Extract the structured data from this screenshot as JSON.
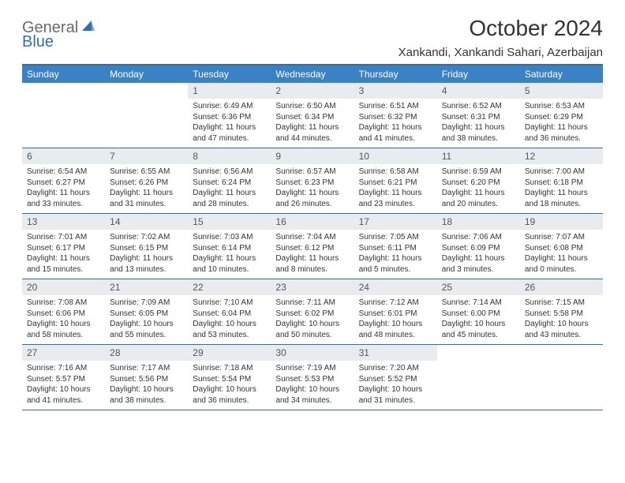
{
  "logo": {
    "word1": "General",
    "word2": "Blue"
  },
  "title": "October 2024",
  "location": "Xankandi, Xankandi Sahari, Azerbaijan",
  "colors": {
    "header_bar": "#3a82c4",
    "border": "#2d6fb6",
    "daynum_bg": "#e9ecef",
    "logo_gray": "#6a6a6a",
    "logo_blue": "#2d6fb6",
    "text": "#333333"
  },
  "daynames": [
    "Sunday",
    "Monday",
    "Tuesday",
    "Wednesday",
    "Thursday",
    "Friday",
    "Saturday"
  ],
  "weeks": [
    [
      {
        "n": "",
        "sunrise": "",
        "sunset": "",
        "daylight1": "",
        "daylight2": ""
      },
      {
        "n": "",
        "sunrise": "",
        "sunset": "",
        "daylight1": "",
        "daylight2": ""
      },
      {
        "n": "1",
        "sunrise": "Sunrise: 6:49 AM",
        "sunset": "Sunset: 6:36 PM",
        "daylight1": "Daylight: 11 hours",
        "daylight2": "and 47 minutes."
      },
      {
        "n": "2",
        "sunrise": "Sunrise: 6:50 AM",
        "sunset": "Sunset: 6:34 PM",
        "daylight1": "Daylight: 11 hours",
        "daylight2": "and 44 minutes."
      },
      {
        "n": "3",
        "sunrise": "Sunrise: 6:51 AM",
        "sunset": "Sunset: 6:32 PM",
        "daylight1": "Daylight: 11 hours",
        "daylight2": "and 41 minutes."
      },
      {
        "n": "4",
        "sunrise": "Sunrise: 6:52 AM",
        "sunset": "Sunset: 6:31 PM",
        "daylight1": "Daylight: 11 hours",
        "daylight2": "and 38 minutes."
      },
      {
        "n": "5",
        "sunrise": "Sunrise: 6:53 AM",
        "sunset": "Sunset: 6:29 PM",
        "daylight1": "Daylight: 11 hours",
        "daylight2": "and 36 minutes."
      }
    ],
    [
      {
        "n": "6",
        "sunrise": "Sunrise: 6:54 AM",
        "sunset": "Sunset: 6:27 PM",
        "daylight1": "Daylight: 11 hours",
        "daylight2": "and 33 minutes."
      },
      {
        "n": "7",
        "sunrise": "Sunrise: 6:55 AM",
        "sunset": "Sunset: 6:26 PM",
        "daylight1": "Daylight: 11 hours",
        "daylight2": "and 31 minutes."
      },
      {
        "n": "8",
        "sunrise": "Sunrise: 6:56 AM",
        "sunset": "Sunset: 6:24 PM",
        "daylight1": "Daylight: 11 hours",
        "daylight2": "and 28 minutes."
      },
      {
        "n": "9",
        "sunrise": "Sunrise: 6:57 AM",
        "sunset": "Sunset: 6:23 PM",
        "daylight1": "Daylight: 11 hours",
        "daylight2": "and 26 minutes."
      },
      {
        "n": "10",
        "sunrise": "Sunrise: 6:58 AM",
        "sunset": "Sunset: 6:21 PM",
        "daylight1": "Daylight: 11 hours",
        "daylight2": "and 23 minutes."
      },
      {
        "n": "11",
        "sunrise": "Sunrise: 6:59 AM",
        "sunset": "Sunset: 6:20 PM",
        "daylight1": "Daylight: 11 hours",
        "daylight2": "and 20 minutes."
      },
      {
        "n": "12",
        "sunrise": "Sunrise: 7:00 AM",
        "sunset": "Sunset: 6:18 PM",
        "daylight1": "Daylight: 11 hours",
        "daylight2": "and 18 minutes."
      }
    ],
    [
      {
        "n": "13",
        "sunrise": "Sunrise: 7:01 AM",
        "sunset": "Sunset: 6:17 PM",
        "daylight1": "Daylight: 11 hours",
        "daylight2": "and 15 minutes."
      },
      {
        "n": "14",
        "sunrise": "Sunrise: 7:02 AM",
        "sunset": "Sunset: 6:15 PM",
        "daylight1": "Daylight: 11 hours",
        "daylight2": "and 13 minutes."
      },
      {
        "n": "15",
        "sunrise": "Sunrise: 7:03 AM",
        "sunset": "Sunset: 6:14 PM",
        "daylight1": "Daylight: 11 hours",
        "daylight2": "and 10 minutes."
      },
      {
        "n": "16",
        "sunrise": "Sunrise: 7:04 AM",
        "sunset": "Sunset: 6:12 PM",
        "daylight1": "Daylight: 11 hours",
        "daylight2": "and 8 minutes."
      },
      {
        "n": "17",
        "sunrise": "Sunrise: 7:05 AM",
        "sunset": "Sunset: 6:11 PM",
        "daylight1": "Daylight: 11 hours",
        "daylight2": "and 5 minutes."
      },
      {
        "n": "18",
        "sunrise": "Sunrise: 7:06 AM",
        "sunset": "Sunset: 6:09 PM",
        "daylight1": "Daylight: 11 hours",
        "daylight2": "and 3 minutes."
      },
      {
        "n": "19",
        "sunrise": "Sunrise: 7:07 AM",
        "sunset": "Sunset: 6:08 PM",
        "daylight1": "Daylight: 11 hours",
        "daylight2": "and 0 minutes."
      }
    ],
    [
      {
        "n": "20",
        "sunrise": "Sunrise: 7:08 AM",
        "sunset": "Sunset: 6:06 PM",
        "daylight1": "Daylight: 10 hours",
        "daylight2": "and 58 minutes."
      },
      {
        "n": "21",
        "sunrise": "Sunrise: 7:09 AM",
        "sunset": "Sunset: 6:05 PM",
        "daylight1": "Daylight: 10 hours",
        "daylight2": "and 55 minutes."
      },
      {
        "n": "22",
        "sunrise": "Sunrise: 7:10 AM",
        "sunset": "Sunset: 6:04 PM",
        "daylight1": "Daylight: 10 hours",
        "daylight2": "and 53 minutes."
      },
      {
        "n": "23",
        "sunrise": "Sunrise: 7:11 AM",
        "sunset": "Sunset: 6:02 PM",
        "daylight1": "Daylight: 10 hours",
        "daylight2": "and 50 minutes."
      },
      {
        "n": "24",
        "sunrise": "Sunrise: 7:12 AM",
        "sunset": "Sunset: 6:01 PM",
        "daylight1": "Daylight: 10 hours",
        "daylight2": "and 48 minutes."
      },
      {
        "n": "25",
        "sunrise": "Sunrise: 7:14 AM",
        "sunset": "Sunset: 6:00 PM",
        "daylight1": "Daylight: 10 hours",
        "daylight2": "and 45 minutes."
      },
      {
        "n": "26",
        "sunrise": "Sunrise: 7:15 AM",
        "sunset": "Sunset: 5:58 PM",
        "daylight1": "Daylight: 10 hours",
        "daylight2": "and 43 minutes."
      }
    ],
    [
      {
        "n": "27",
        "sunrise": "Sunrise: 7:16 AM",
        "sunset": "Sunset: 5:57 PM",
        "daylight1": "Daylight: 10 hours",
        "daylight2": "and 41 minutes."
      },
      {
        "n": "28",
        "sunrise": "Sunrise: 7:17 AM",
        "sunset": "Sunset: 5:56 PM",
        "daylight1": "Daylight: 10 hours",
        "daylight2": "and 38 minutes."
      },
      {
        "n": "29",
        "sunrise": "Sunrise: 7:18 AM",
        "sunset": "Sunset: 5:54 PM",
        "daylight1": "Daylight: 10 hours",
        "daylight2": "and 36 minutes."
      },
      {
        "n": "30",
        "sunrise": "Sunrise: 7:19 AM",
        "sunset": "Sunset: 5:53 PM",
        "daylight1": "Daylight: 10 hours",
        "daylight2": "and 34 minutes."
      },
      {
        "n": "31",
        "sunrise": "Sunrise: 7:20 AM",
        "sunset": "Sunset: 5:52 PM",
        "daylight1": "Daylight: 10 hours",
        "daylight2": "and 31 minutes."
      },
      {
        "n": "",
        "sunrise": "",
        "sunset": "",
        "daylight1": "",
        "daylight2": ""
      },
      {
        "n": "",
        "sunrise": "",
        "sunset": "",
        "daylight1": "",
        "daylight2": ""
      }
    ]
  ]
}
